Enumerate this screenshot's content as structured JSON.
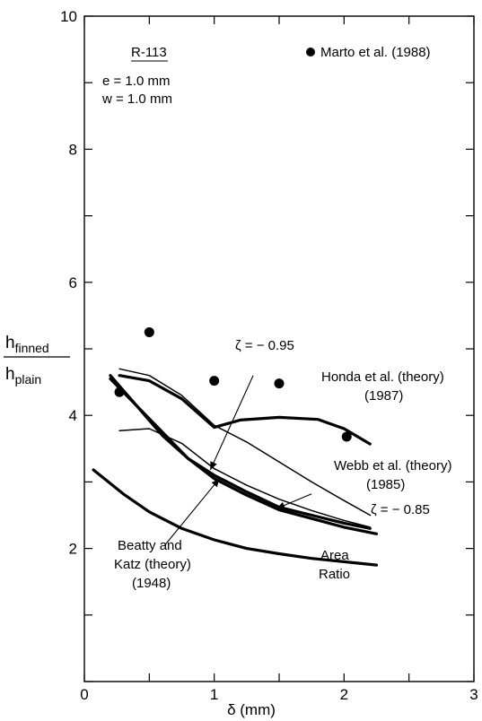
{
  "chart_data": {
    "type": "line",
    "xlabel": "δ (mm)",
    "ylabel_top": "h",
    "ylabel_top_sub": "finned",
    "ylabel_bottom": "h",
    "ylabel_bottom_sub": "plain",
    "xlim": [
      0,
      3
    ],
    "ylim": [
      0,
      10
    ],
    "x_ticks": [
      "0",
      "1",
      "2",
      "3"
    ],
    "y_ticks": [
      "2",
      "4",
      "6",
      "8",
      "10"
    ],
    "annotations": {
      "fluid": "R-113",
      "e_param": "e = 1.0 mm",
      "w_param": "w = 1.0 mm",
      "legend_marto": "Marto et al. (1988)",
      "honda_1": "Honda et al. (theory)",
      "honda_2": "(1987)",
      "webb_1": "Webb et al. (theory)",
      "webb_2": "(1985)",
      "zeta_095": "ζ = − 0.95",
      "zeta_085": "ζ = − 0.85",
      "beatty_1": "Beatty and",
      "beatty_2": "Katz (theory)",
      "beatty_3": "(1948)",
      "area_1": "Area",
      "area_2": "Ratio"
    },
    "scatter": {
      "name": "Marto et al. (1988)",
      "x": [
        0.27,
        0.5,
        1.0,
        1.5,
        2.02
      ],
      "y": [
        4.35,
        5.25,
        4.52,
        4.48,
        3.68
      ]
    },
    "series": [
      {
        "key": "honda",
        "x": [
          0.27,
          0.5,
          0.75,
          1.0,
          1.2,
          1.5,
          1.8,
          2.0,
          2.2
        ],
        "y": [
          4.6,
          4.52,
          4.25,
          3.82,
          3.93,
          3.97,
          3.94,
          3.8,
          3.57
        ],
        "weight": "bold"
      },
      {
        "key": "honda_thin",
        "x": [
          0.27,
          0.5,
          0.75,
          1.0,
          1.25,
          1.5,
          1.75,
          2.0,
          2.2
        ],
        "y": [
          4.7,
          4.6,
          4.3,
          3.85,
          3.6,
          3.3,
          3.0,
          2.72,
          2.5
        ],
        "weight": "thin"
      },
      {
        "key": "webb_095",
        "x": [
          0.2,
          0.4,
          0.6,
          0.8,
          1.0,
          1.25,
          1.5,
          1.75,
          2.0,
          2.2
        ],
        "y": [
          4.6,
          4.15,
          3.7,
          3.35,
          3.1,
          2.85,
          2.62,
          2.5,
          2.38,
          2.3
        ],
        "weight": "bold"
      },
      {
        "key": "webb_085",
        "x": [
          0.27,
          0.5,
          0.75,
          1.0,
          1.25,
          1.5,
          1.75,
          2.0,
          2.2
        ],
        "y": [
          3.77,
          3.8,
          3.58,
          3.2,
          2.95,
          2.74,
          2.57,
          2.42,
          2.32
        ],
        "weight": "thin"
      },
      {
        "key": "beatty_katz",
        "x": [
          0.2,
          0.4,
          0.6,
          0.8,
          1.0,
          1.25,
          1.5,
          1.75,
          2.0,
          2.25
        ],
        "y": [
          4.55,
          4.15,
          3.75,
          3.35,
          3.05,
          2.8,
          2.58,
          2.45,
          2.32,
          2.22
        ],
        "weight": "bold"
      },
      {
        "key": "area_ratio",
        "x": [
          0.07,
          0.3,
          0.5,
          0.75,
          1.0,
          1.25,
          1.5,
          1.75,
          2.0,
          2.25
        ],
        "y": [
          3.18,
          2.82,
          2.55,
          2.3,
          2.13,
          2.0,
          1.92,
          1.85,
          1.8,
          1.75
        ],
        "weight": "bold"
      }
    ]
  }
}
